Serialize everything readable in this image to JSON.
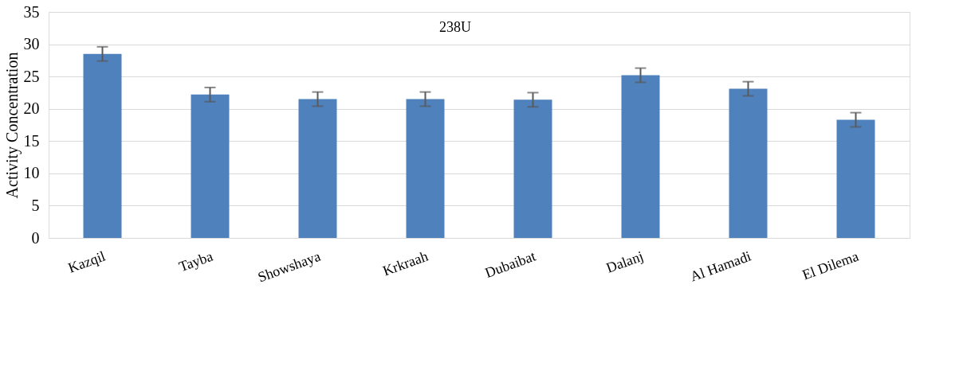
{
  "chart_data": {
    "type": "bar",
    "title": "238U",
    "ylabel": "Activity Concentration",
    "categories": [
      "Kazqil",
      "Tayba",
      "Showshaya",
      "Krkraah",
      "Dubaibat",
      "Dalanj",
      "Al Hamadi",
      "El Dilema"
    ],
    "values": [
      28.5,
      22.2,
      21.5,
      21.5,
      21.4,
      25.2,
      23.1,
      18.3
    ],
    "errors": [
      1.1,
      1.1,
      1.1,
      1.1,
      1.1,
      1.1,
      1.1,
      1.1
    ],
    "color": "#4f81bd",
    "ylim": [
      0,
      35
    ],
    "yticks": [
      0,
      5,
      10,
      15,
      20,
      25,
      30,
      35
    ],
    "grid": "y"
  }
}
